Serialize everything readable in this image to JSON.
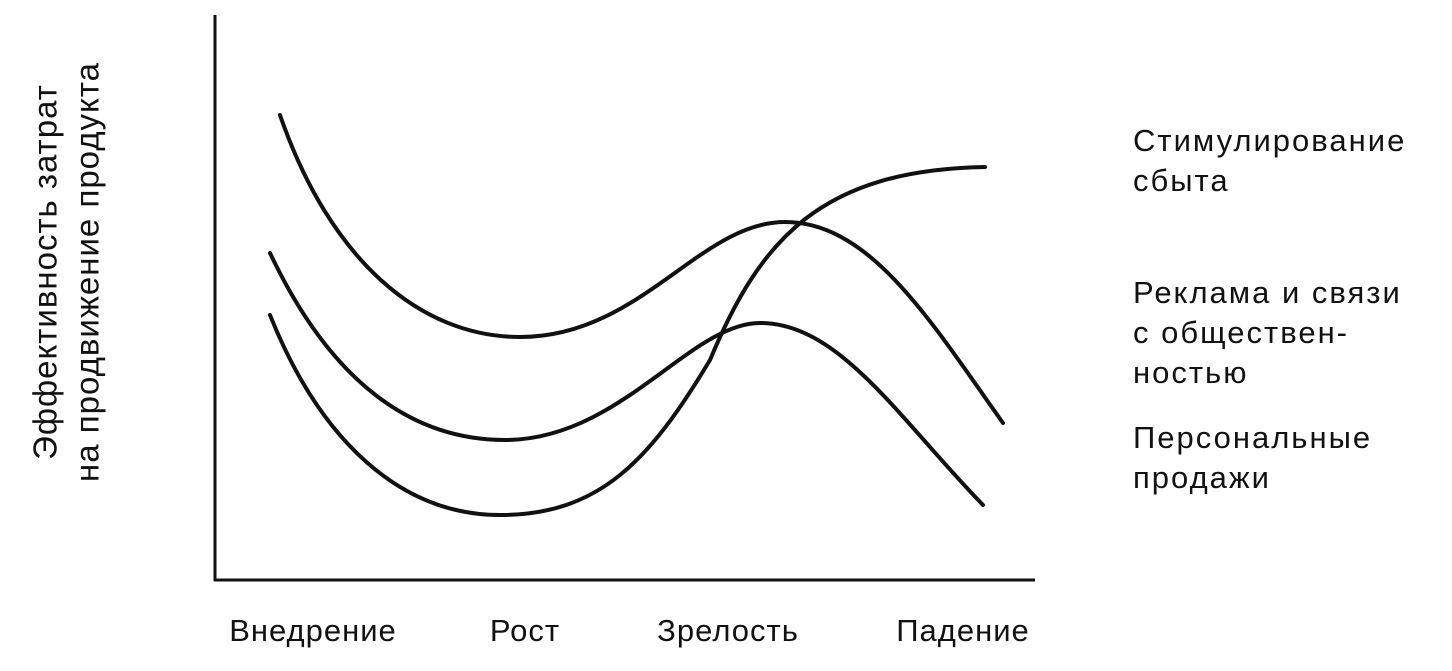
{
  "y_axis_label": [
    "Эффективность затрат",
    "на продвижение продукта"
  ],
  "stages": [
    "Внедрение",
    "Рост",
    "Зрелость",
    "Падение"
  ],
  "curve_labels": [
    [
      "Стимулирование",
      "сбыта"
    ],
    [
      "Реклама и связи",
      "с обществен-",
      "ностью"
    ],
    [
      "Персональные",
      "продажи"
    ]
  ]
}
